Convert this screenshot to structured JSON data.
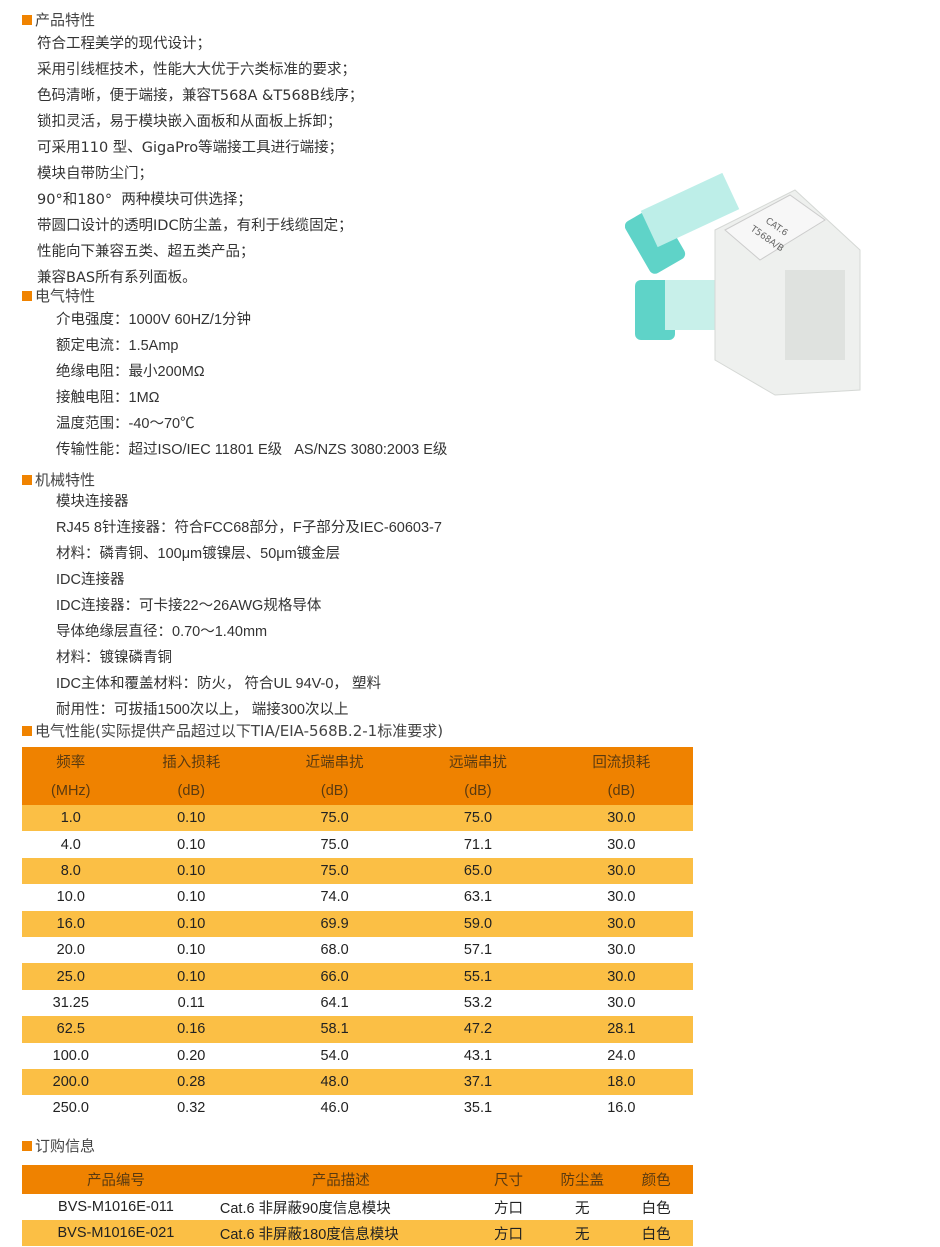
{
  "features": {
    "title": "产品特性",
    "items": [
      "符合工程美学的现代设计；",
      "采用引线框技术，性能大大优于六类标准的要求；",
      "色码清晰，便于端接，兼容T568A &T568B线序；",
      "锁扣灵活，易于模块嵌入面板和从面板上拆卸；",
      "可采用110 型、GigaPro等端接工具进行端接；",
      "模块自带防尘门；",
      "90°和180°  两种模块可供选择；",
      "带圆口设计的透明IDC防尘盖，有利于线缆固定；",
      "性能向下兼容五类、超五类产品；",
      "兼容BAS所有系列面板。"
    ]
  },
  "electrical": {
    "title": "电气特性",
    "items": [
      "介电强度：1000V 60HZ/1分钟",
      "额定电流：1.5Amp",
      "绝缘电阻：最小200MΩ",
      "接触电阻：1MΩ",
      "温度范围：-40～70℃",
      "传输性能：超过ISO/IEC 11801 E级   AS/NZS 3080:2003 E级"
    ]
  },
  "mechanical": {
    "title": "机械特性",
    "items": [
      "模块连接器",
      "RJ45 8针连接器：符合FCC68部分，F子部分及IEC-60603-7",
      "材料：磷青铜、100μm镀镍层、50μm镀金层",
      "IDC连接器",
      "IDC连接器：可卡接22～26AWG规格导体",
      "导体绝缘层直径：0.70～1.40mm",
      "材料：镀镍磷青铜",
      "IDC主体和覆盖材料：防火， 符合UL 94V-0， 塑料",
      "耐用性：可拔插1500次以上， 端接300次以上"
    ]
  },
  "performance": {
    "title": "电气性能(实际提供产品超过以下TIA/EIA-568B.2-1标准要求)",
    "headers": [
      [
        "频率",
        "(MHz)"
      ],
      [
        "插入损耗",
        "(dB)"
      ],
      [
        "近端串扰",
        "(dB)"
      ],
      [
        "远端串扰",
        "(dB)"
      ],
      [
        "回流损耗",
        "(dB)"
      ]
    ],
    "rows": [
      [
        "1.0",
        "0.10",
        "75.0",
        "75.0",
        "30.0"
      ],
      [
        "4.0",
        "0.10",
        "75.0",
        "71.1",
        "30.0"
      ],
      [
        "8.0",
        "0.10",
        "75.0",
        "65.0",
        "30.0"
      ],
      [
        "10.0",
        "0.10",
        "74.0",
        "63.1",
        "30.0"
      ],
      [
        "16.0",
        "0.10",
        "69.9",
        "59.0",
        "30.0"
      ],
      [
        "20.0",
        "0.10",
        "68.0",
        "57.1",
        "30.0"
      ],
      [
        "25.0",
        "0.10",
        "66.0",
        "55.1",
        "30.0"
      ],
      [
        "31.25",
        "0.11",
        "64.1",
        "53.2",
        "30.0"
      ],
      [
        "62.5",
        "0.16",
        "58.1",
        "47.2",
        "28.1"
      ],
      [
        "100.0",
        "0.20",
        "54.0",
        "43.1",
        "24.0"
      ],
      [
        "200.0",
        "0.28",
        "48.0",
        "37.1",
        "18.0"
      ],
      [
        "250.0",
        "0.32",
        "46.0",
        "35.1",
        "16.0"
      ]
    ]
  },
  "ordering": {
    "title": "订购信息",
    "headers": [
      "产品编号",
      "产品描述",
      "尺寸",
      "防尘盖",
      "颜色"
    ],
    "rows": [
      [
        "BVS-M1016E-011",
        "Cat.6 非屏蔽90度信息模块",
        "方口",
        "无",
        "白色"
      ],
      [
        "BVS-M1016E-021",
        "Cat.6 非屏蔽180度信息模块",
        "方口",
        "无",
        "白色"
      ]
    ]
  },
  "product_image": {
    "labels": [
      "T568A/B",
      "CAT.6"
    ]
  },
  "colors": {
    "accent": "#ef8200",
    "row_highlight": "#fbbf45"
  }
}
